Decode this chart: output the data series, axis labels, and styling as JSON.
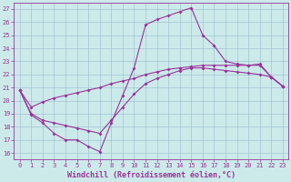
{
  "xlabel": "Windchill (Refroidissement éolien,°C)",
  "background_color": "#cceaea",
  "grid_color": "#99bbcc",
  "line_color": "#993399",
  "xlim": [
    -0.5,
    23.5
  ],
  "ylim": [
    15.5,
    27.5
  ],
  "yticks": [
    16,
    17,
    18,
    19,
    20,
    21,
    22,
    23,
    24,
    25,
    26,
    27
  ],
  "xticks": [
    0,
    1,
    2,
    3,
    4,
    5,
    6,
    7,
    8,
    9,
    10,
    11,
    12,
    13,
    14,
    15,
    16,
    17,
    18,
    19,
    20,
    21,
    22,
    23
  ],
  "series1_x": [
    0,
    1,
    2,
    3,
    4,
    5,
    6,
    7,
    8,
    9,
    10,
    11,
    12,
    13,
    14,
    15,
    16,
    17,
    18,
    19,
    20,
    21,
    22,
    23
  ],
  "series1_y": [
    20.8,
    18.9,
    18.3,
    17.5,
    17.0,
    17.0,
    16.5,
    16.1,
    18.3,
    20.4,
    22.5,
    25.8,
    26.2,
    26.5,
    26.8,
    27.1,
    25.0,
    24.2,
    23.0,
    22.8,
    22.7,
    22.8,
    21.8,
    21.1
  ],
  "series2_x": [
    0,
    1,
    2,
    3,
    4,
    5,
    6,
    7,
    8,
    9,
    10,
    11,
    12,
    13,
    14,
    15,
    16,
    17,
    18,
    19,
    20,
    21,
    22,
    23
  ],
  "series2_y": [
    20.8,
    19.5,
    19.9,
    20.2,
    20.4,
    20.6,
    20.8,
    21.0,
    21.3,
    21.5,
    21.7,
    22.0,
    22.2,
    22.4,
    22.5,
    22.6,
    22.7,
    22.7,
    22.7,
    22.7,
    22.7,
    22.7,
    21.8,
    21.1
  ],
  "series3_x": [
    0,
    1,
    2,
    3,
    4,
    5,
    6,
    7,
    8,
    9,
    10,
    11,
    12,
    13,
    14,
    15,
    16,
    17,
    18,
    19,
    20,
    21,
    22,
    23
  ],
  "series3_y": [
    20.8,
    19.0,
    18.5,
    18.3,
    18.1,
    17.9,
    17.7,
    17.5,
    18.5,
    19.5,
    20.5,
    21.3,
    21.7,
    22.0,
    22.3,
    22.5,
    22.5,
    22.4,
    22.3,
    22.2,
    22.1,
    22.0,
    21.8,
    21.1
  ],
  "marker": "D",
  "marker_size": 2,
  "linewidth": 0.8,
  "font_color": "#993399",
  "tick_fontsize": 5,
  "label_fontsize": 6
}
